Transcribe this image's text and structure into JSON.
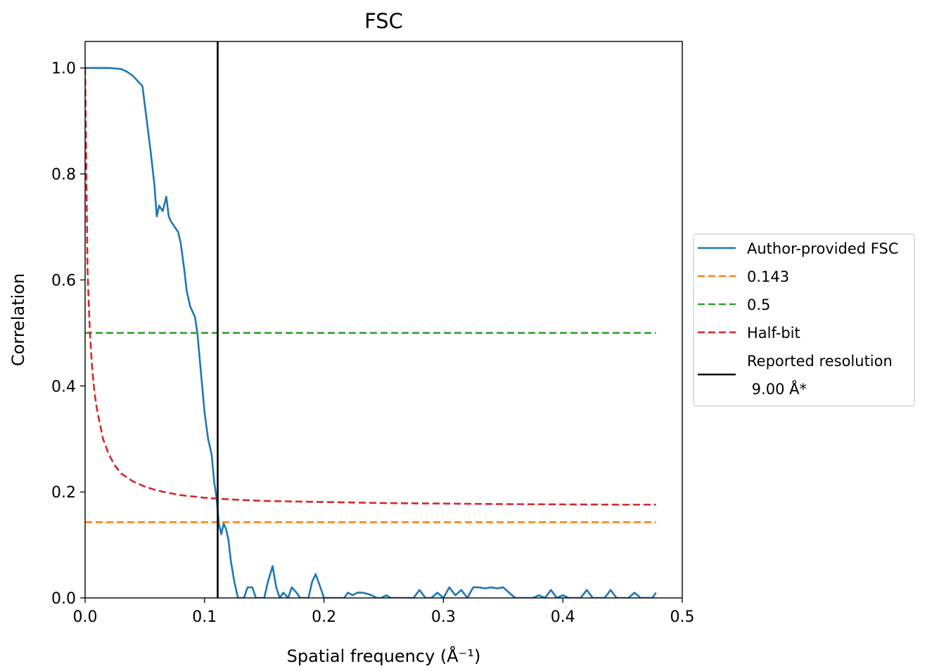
{
  "chart_data": {
    "type": "line",
    "title": "FSC",
    "xlabel": "Spatial frequency (Å⁻¹)",
    "ylabel": "Correlation",
    "xlim": [
      0.0,
      0.5
    ],
    "ylim": [
      0.0,
      1.05
    ],
    "xticks": [
      0.0,
      0.1,
      0.2,
      0.3,
      0.4,
      0.5
    ],
    "xtick_labels": [
      "0.0",
      "0.1",
      "0.2",
      "0.3",
      "0.4",
      "0.5"
    ],
    "yticks": [
      0.0,
      0.2,
      0.4,
      0.6,
      0.8,
      1.0
    ],
    "ytick_labels": [
      "0.0",
      "0.2",
      "0.4",
      "0.6",
      "0.8",
      "1.0"
    ],
    "grid": false,
    "legend_position": "right, outside plot",
    "series": [
      {
        "name": "Author-provided FSC",
        "color": "#1f77b4",
        "style": "solid",
        "x": [
          0.0,
          0.01,
          0.02,
          0.03,
          0.035,
          0.04,
          0.045,
          0.048,
          0.05,
          0.055,
          0.058,
          0.06,
          0.062,
          0.065,
          0.068,
          0.07,
          0.072,
          0.075,
          0.078,
          0.08,
          0.083,
          0.085,
          0.088,
          0.09,
          0.092,
          0.094,
          0.096,
          0.098,
          0.1,
          0.103,
          0.106,
          0.108,
          0.11,
          0.112,
          0.114,
          0.116,
          0.118,
          0.12,
          0.122,
          0.125,
          0.128,
          0.13,
          0.133,
          0.136,
          0.14,
          0.143,
          0.146,
          0.15,
          0.153,
          0.157,
          0.16,
          0.163,
          0.166,
          0.17,
          0.173,
          0.177,
          0.18,
          0.184,
          0.187,
          0.19,
          0.193,
          0.197,
          0.2,
          0.203,
          0.206,
          0.21,
          0.213,
          0.217,
          0.22,
          0.224,
          0.228,
          0.232,
          0.236,
          0.24,
          0.244,
          0.248,
          0.252,
          0.256,
          0.26,
          0.265,
          0.27,
          0.275,
          0.28,
          0.285,
          0.29,
          0.295,
          0.3,
          0.305,
          0.31,
          0.315,
          0.32,
          0.325,
          0.33,
          0.335,
          0.34,
          0.345,
          0.35,
          0.355,
          0.36,
          0.365,
          0.37,
          0.375,
          0.38,
          0.385,
          0.39,
          0.395,
          0.4,
          0.405,
          0.41,
          0.415,
          0.42,
          0.425,
          0.43,
          0.435,
          0.44,
          0.445,
          0.45,
          0.455,
          0.46,
          0.465,
          0.47,
          0.475,
          0.478
        ],
        "y": [
          1.0,
          1.0,
          1.0,
          0.998,
          0.993,
          0.985,
          0.973,
          0.966,
          0.93,
          0.84,
          0.78,
          0.72,
          0.74,
          0.73,
          0.757,
          0.72,
          0.71,
          0.7,
          0.69,
          0.67,
          0.62,
          0.58,
          0.55,
          0.54,
          0.53,
          0.5,
          0.45,
          0.4,
          0.35,
          0.3,
          0.27,
          0.22,
          0.19,
          0.14,
          0.12,
          0.14,
          0.13,
          0.11,
          0.07,
          0.03,
          0.0,
          0.0,
          0.0,
          0.02,
          0.02,
          0.0,
          0.0,
          0.0,
          0.03,
          0.06,
          0.02,
          0.0,
          0.01,
          0.0,
          0.02,
          0.01,
          0.0,
          0.0,
          0.0,
          0.03,
          0.045,
          0.02,
          0.0,
          0.0,
          0.0,
          0.0,
          0.0,
          0.0,
          0.01,
          0.005,
          0.01,
          0.01,
          0.008,
          0.005,
          0.0,
          0.0,
          0.005,
          0.0,
          0.0,
          0.0,
          0.0,
          0.0,
          0.015,
          0.0,
          0.0,
          0.01,
          0.0,
          0.02,
          0.005,
          0.015,
          0.0,
          0.02,
          0.02,
          0.018,
          0.02,
          0.018,
          0.02,
          0.01,
          0.0,
          0.0,
          0.0,
          0.0,
          0.005,
          0.0,
          0.015,
          0.0,
          0.005,
          0.0,
          0.0,
          0.0,
          0.015,
          0.0,
          0.0,
          0.0,
          0.015,
          0.0,
          0.0,
          0.0,
          0.01,
          0.0,
          0.0,
          0.0,
          0.01
        ]
      },
      {
        "name": "0.143",
        "color": "#ff7f0e",
        "style": "dashed",
        "x": [
          0.0,
          0.478
        ],
        "y": [
          0.143,
          0.143
        ]
      },
      {
        "name": "0.5",
        "color": "#2ca02c",
        "style": "dashed",
        "x": [
          0.0,
          0.478
        ],
        "y": [
          0.5,
          0.5
        ]
      },
      {
        "name": "Half-bit",
        "color": "#d62728",
        "style": "dashed",
        "x": [
          0.0,
          0.002,
          0.004,
          0.006,
          0.008,
          0.01,
          0.015,
          0.02,
          0.025,
          0.03,
          0.04,
          0.05,
          0.06,
          0.07,
          0.08,
          0.1,
          0.12,
          0.15,
          0.2,
          0.25,
          0.3,
          0.35,
          0.4,
          0.45,
          0.478
        ],
        "y": [
          1.0,
          0.62,
          0.5,
          0.43,
          0.385,
          0.355,
          0.3,
          0.27,
          0.25,
          0.235,
          0.22,
          0.21,
          0.203,
          0.198,
          0.194,
          0.189,
          0.186,
          0.183,
          0.181,
          0.179,
          0.178,
          0.177,
          0.1765,
          0.176,
          0.176
        ]
      },
      {
        "name": "Reported resolution\n 9.00 Å*",
        "color": "#000000",
        "style": "solid",
        "vertical": true,
        "x": [
          0.111,
          0.111
        ],
        "y": [
          0.0,
          1.05
        ]
      }
    ]
  }
}
